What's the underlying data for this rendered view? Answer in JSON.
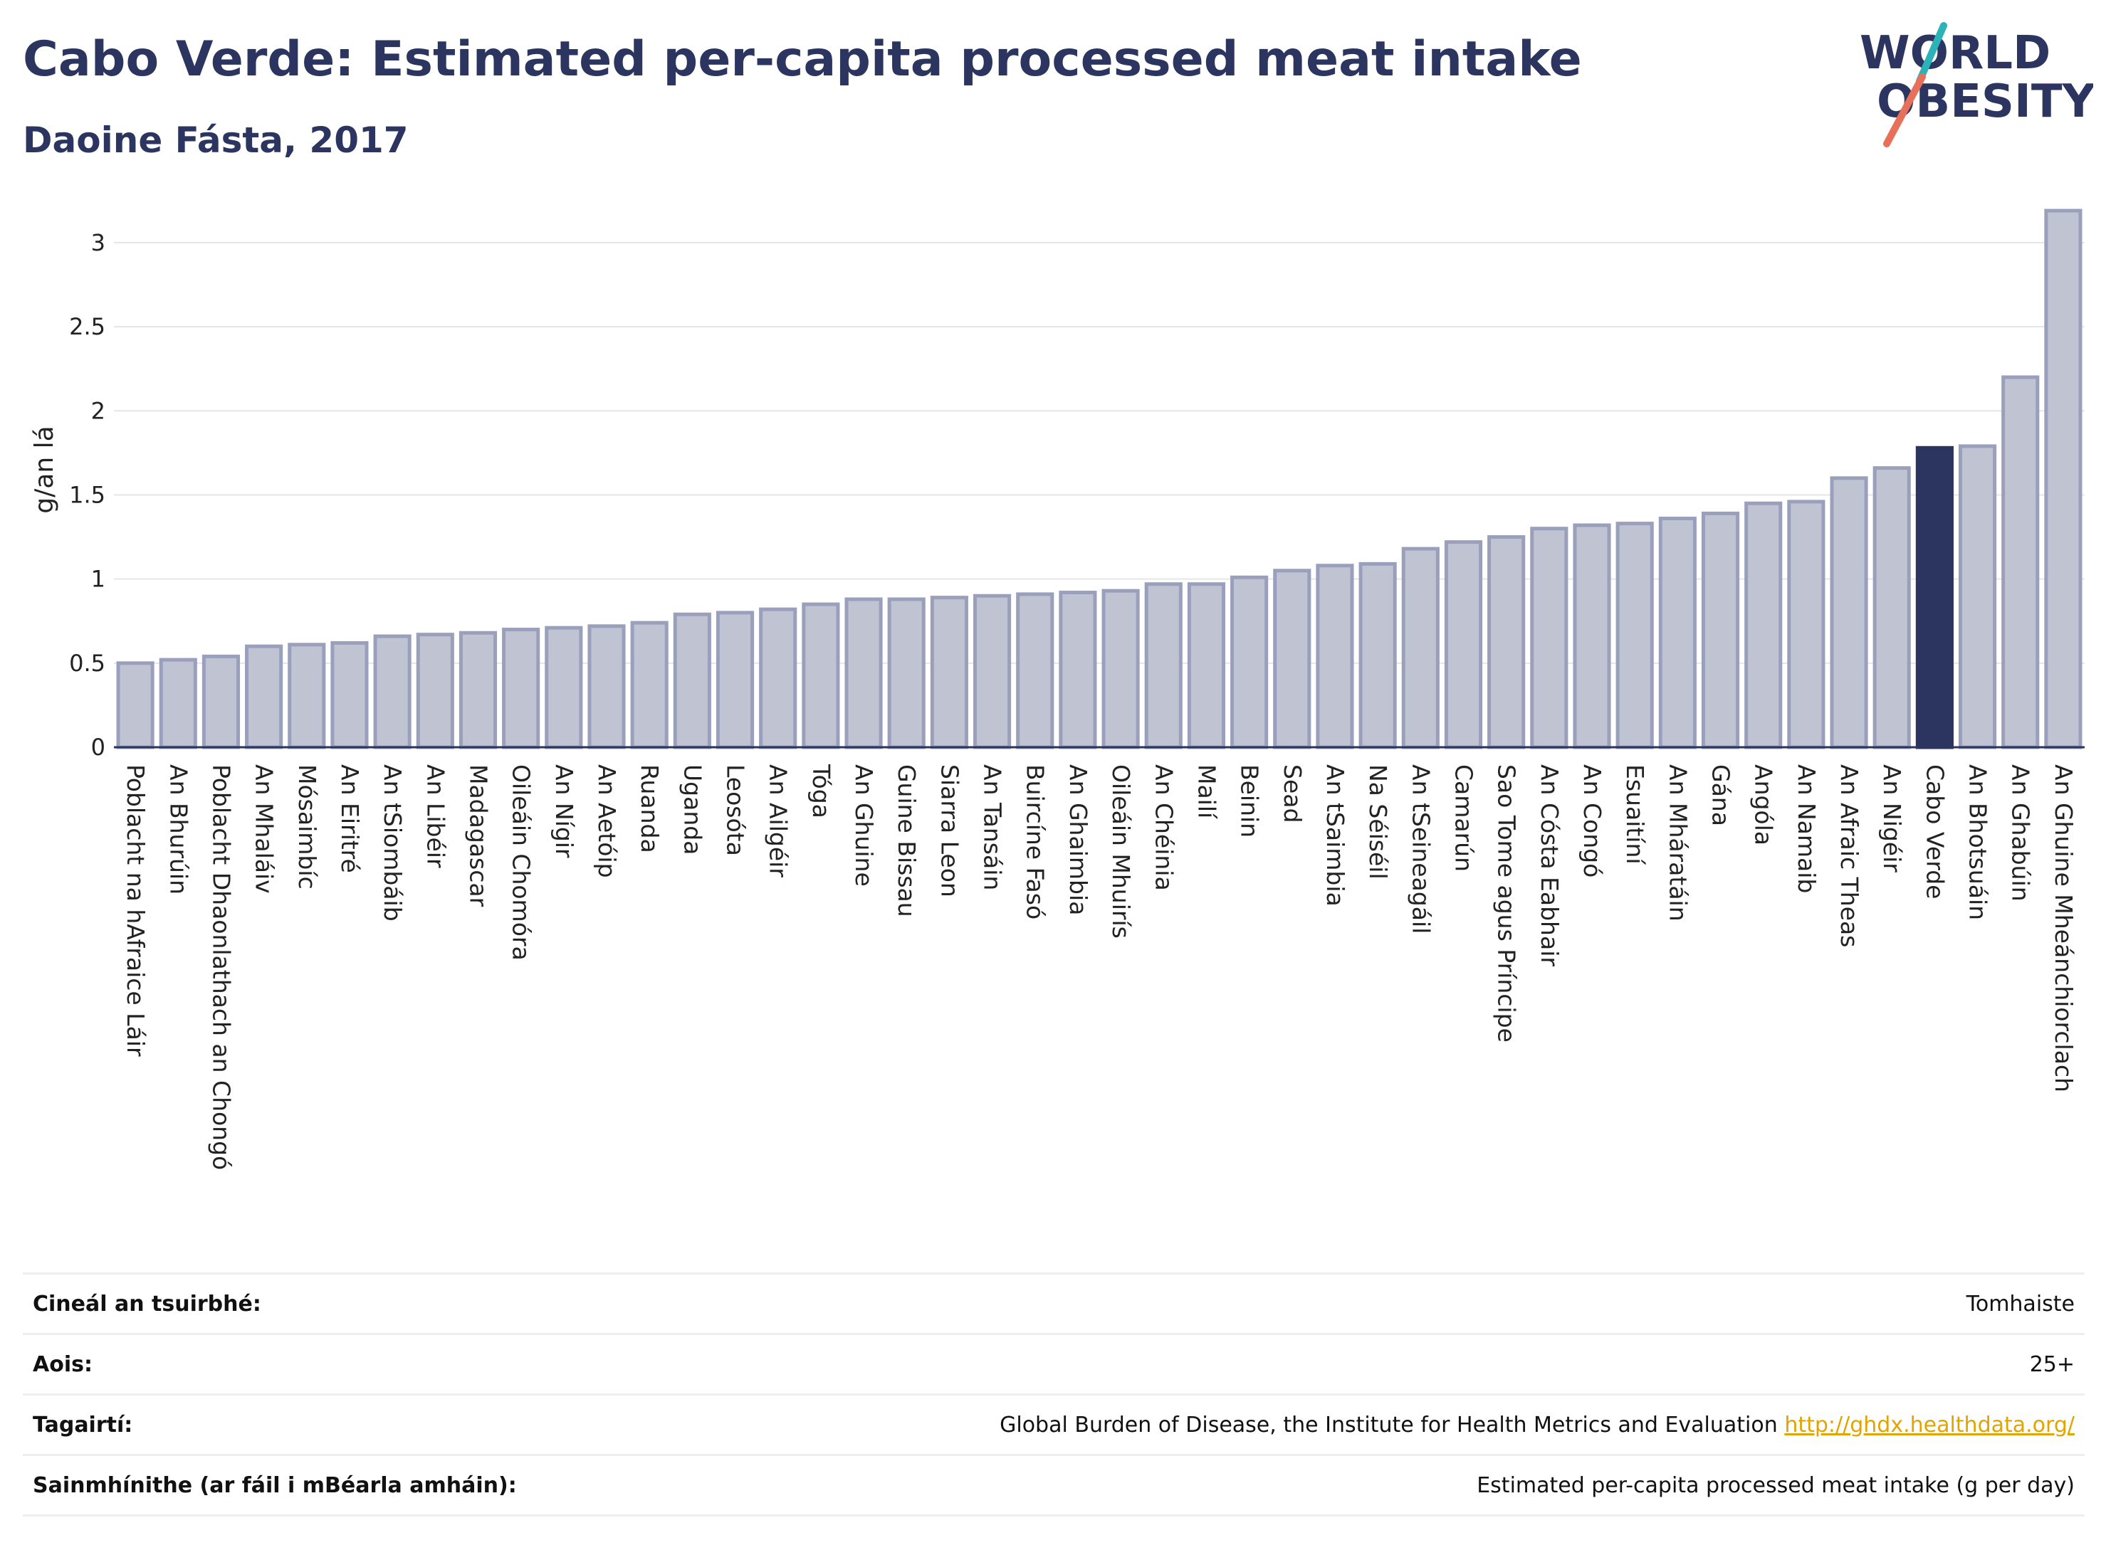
{
  "header": {
    "title": "Cabo Verde: Estimated per-capita processed meat intake",
    "subtitle": "Daoine Fásta, 2017"
  },
  "logo": {
    "line1": "WORLD",
    "line2": "OBESITY"
  },
  "chart_data": {
    "type": "bar",
    "title": "Cabo Verde: Estimated per-capita processed meat intake",
    "subtitle": "Daoine Fásta, 2017",
    "xlabel": "",
    "ylabel": "g/an lá",
    "ylim": [
      0,
      3.3
    ],
    "yticks": [
      0,
      0.5,
      1,
      1.5,
      2,
      2.5,
      3
    ],
    "ytick_labels": [
      "0",
      "0.5",
      "1",
      "1.5",
      "2",
      "2.5",
      "3"
    ],
    "grid": true,
    "highlight": "Cabo Verde",
    "colors": {
      "bar": "#bfc3d2",
      "bar_edge": "#9aa0bb",
      "highlight": "#2b3560"
    },
    "categories": [
      "Poblacht na hAfraice Láir",
      "An Bhurúin",
      "Poblacht Dhaonlathach an Chongó",
      "An Mhaláiv",
      "Mósaimbíc",
      "An Eiritré",
      "An tSiombáib",
      "An Libéir",
      "Madagascar",
      "Oileáin Chomóra",
      "An Nígir",
      "An Aetóip",
      "Ruanda",
      "Uganda",
      "Leosóta",
      "An Ailgéir",
      "Tóga",
      "An Ghuine",
      "Guine Bissau",
      "Siarra Leon",
      "An Tansáin",
      "Buircíne Fasó",
      "An Ghaimbia",
      "Oileáin Mhuirís",
      "An Chéinia",
      "Mailí",
      "Beinin",
      "Sead",
      "An tSaimbia",
      "Na Séiséil",
      "An tSeineagáil",
      "Camarún",
      "Sao Tome agus Príncipe",
      "An Cósta Eabhair",
      "An Congó",
      "Esuaitíní",
      "An Mháratáin",
      "Gána",
      "Angóla",
      "An Namaib",
      "An Afraic Theas",
      "An Nigéir",
      "Cabo Verde",
      "An Bhotsuáin",
      "An Ghabúin",
      "An Ghuine Mheánchiorclach"
    ],
    "values": [
      0.5,
      0.52,
      0.54,
      0.6,
      0.61,
      0.62,
      0.66,
      0.67,
      0.68,
      0.7,
      0.71,
      0.72,
      0.74,
      0.79,
      0.8,
      0.82,
      0.85,
      0.88,
      0.88,
      0.89,
      0.9,
      0.91,
      0.92,
      0.93,
      0.97,
      0.97,
      1.01,
      1.05,
      1.08,
      1.09,
      1.18,
      1.22,
      1.25,
      1.3,
      1.32,
      1.33,
      1.36,
      1.39,
      1.45,
      1.46,
      1.6,
      1.66,
      1.78,
      1.79,
      2.2,
      3.19
    ]
  },
  "meta": [
    {
      "key": "Cineál an tsuirbhé:",
      "value": "Tomhaiste",
      "link": ""
    },
    {
      "key": "Aois:",
      "value": "25+",
      "link": ""
    },
    {
      "key": "Tagairtí:",
      "value": "Global Burden of Disease, the Institute for Health Metrics and Evaluation",
      "link": "http://ghdx.healthdata.org/"
    },
    {
      "key": "Sainmhínithe (ar fáil i mBéarla amháin):",
      "value": "Estimated per-capita processed meat intake (g per day)",
      "link": ""
    }
  ]
}
